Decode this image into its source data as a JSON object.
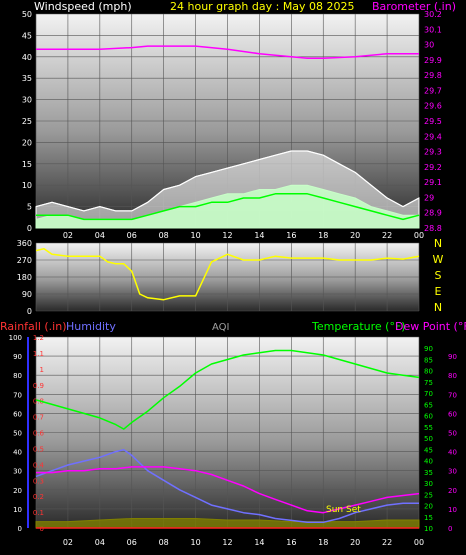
{
  "header": {
    "wind_label": "Windspeed (mph)",
    "title": "24 hour graph day : May 08 2025",
    "baro_label": "Barometer (.in)"
  },
  "dir_labels": [
    "N",
    "W",
    "S",
    "E",
    "N"
  ],
  "bottom_header": {
    "rain_label": "Rainfall (.in)",
    "humidity_label": "Humidity",
    "aqi_label": "AQI",
    "temp_label": "Temperature (°F)",
    "dew_label": "Dew Point (°F)"
  },
  "annotation": "Sun Set",
  "colors": {
    "wind_label": "#ffffff",
    "title": "#ffff00",
    "baro": "#ff00ff",
    "gust": "#ffffff",
    "avg_wind": "#c8ffc8",
    "wind_line": "#00ff00",
    "direction": "#ffff00",
    "rain": "#ff2222",
    "humidity": "#7070ff",
    "aqi": "#a0a0a0",
    "temperature": "#00ff00",
    "dew_point": "#ff00ff",
    "solar": "#808000",
    "axis_blue": "#3030ff"
  },
  "chart_data": [
    {
      "type": "line",
      "name": "wind_and_barometer",
      "x_ticks": [
        "02",
        "04",
        "06",
        "08",
        "10",
        "12",
        "14",
        "16",
        "18",
        "20",
        "22",
        "00"
      ],
      "y_left": {
        "label": "Windspeed (mph)",
        "ylim": [
          0,
          50
        ],
        "ticks": [
          "0",
          "5",
          "10",
          "15",
          "20",
          "25",
          "30",
          "35",
          "40",
          "45",
          "50"
        ]
      },
      "y_right": {
        "label": "Barometer (.in)",
        "ylim": [
          28.8,
          30.2
        ],
        "ticks": [
          "28.8",
          "28.9",
          "29",
          "29.1",
          "29.2",
          "29.3",
          "29.4",
          "29.5",
          "29.6",
          "29.7",
          "29.8",
          "29.9",
          "30",
          "30.1",
          "30.2"
        ]
      },
      "grid": true,
      "series": [
        {
          "name": "Barometer (.in)",
          "axis": "right",
          "x": [
            0,
            2,
            4,
            6,
            7,
            8,
            10,
            12,
            14,
            16,
            17,
            18,
            20,
            22,
            24
          ],
          "y": [
            29.97,
            29.97,
            29.97,
            29.98,
            29.99,
            29.99,
            29.99,
            29.97,
            29.94,
            29.92,
            29.91,
            29.91,
            29.92,
            29.94,
            29.94
          ]
        },
        {
          "axis": "left",
          "role": "gust",
          "x": [
            0,
            1,
            2,
            3,
            4,
            5,
            6,
            7,
            8,
            9,
            10,
            11,
            12,
            13,
            14,
            15,
            16,
            17,
            18,
            19,
            20,
            21,
            22,
            23,
            24
          ],
          "y": [
            5,
            6,
            5,
            4,
            5,
            4,
            4,
            6,
            9,
            10,
            12,
            13,
            14,
            15,
            16,
            17,
            18,
            18,
            17,
            15,
            13,
            10,
            7,
            5,
            7
          ]
        },
        {
          "axis": "left",
          "role": "average",
          "x": [
            0,
            1,
            2,
            3,
            4,
            5,
            6,
            7,
            8,
            9,
            10,
            11,
            12,
            13,
            14,
            15,
            16,
            17,
            18,
            19,
            20,
            21,
            22,
            23,
            24
          ],
          "y": [
            2,
            3,
            3,
            2,
            2,
            2,
            2,
            3,
            4,
            5,
            6,
            7,
            8,
            8,
            9,
            9,
            10,
            10,
            9,
            8,
            7,
            5,
            4,
            3,
            3
          ]
        },
        {
          "axis": "left",
          "role": "wind",
          "x": [
            0,
            1,
            2,
            3,
            4,
            5,
            6,
            7,
            8,
            9,
            10,
            11,
            12,
            13,
            14,
            15,
            16,
            17,
            18,
            19,
            20,
            21,
            22,
            23,
            24
          ],
          "y": [
            3,
            3,
            3,
            2,
            2,
            2,
            2,
            3,
            4,
            5,
            5,
            6,
            6,
            7,
            7,
            8,
            8,
            8,
            7,
            6,
            5,
            4,
            3,
            2,
            3
          ]
        }
      ]
    },
    {
      "type": "line",
      "name": "wind_direction",
      "y_ticks": [
        "0",
        "90",
        "180",
        "270",
        "360"
      ],
      "ylim": [
        0,
        360
      ],
      "grid": true,
      "series": [
        {
          "axis": "left",
          "x": [
            0,
            0.5,
            1,
            2,
            3,
            4,
            4.5,
            5,
            5.5,
            6,
            6.5,
            7,
            8,
            9,
            10,
            11,
            12,
            13,
            14,
            15,
            16,
            17,
            18,
            19,
            20,
            21,
            22,
            23,
            24
          ],
          "y": [
            320,
            330,
            300,
            290,
            290,
            290,
            260,
            250,
            250,
            210,
            90,
            70,
            60,
            80,
            80,
            260,
            300,
            270,
            270,
            290,
            280,
            280,
            280,
            270,
            270,
            270,
            280,
            275,
            290
          ]
        }
      ]
    },
    {
      "type": "line",
      "name": "temperature_humidity_rain",
      "x_ticks": [
        "02",
        "04",
        "06",
        "08",
        "10",
        "12",
        "14",
        "16",
        "18",
        "20",
        "22",
        "00"
      ],
      "y_left": {
        "label": "Rainfall (.in)",
        "ylim": [
          0,
          1.2
        ],
        "ticks": [
          "0",
          "0.1",
          "0.2",
          "0.3",
          "0.4",
          "0.5",
          "0.6",
          "0.7",
          "0.8",
          "0.9",
          "1",
          "1.1",
          "1.2"
        ]
      },
      "y_humidity": {
        "label": "Humidity",
        "ylim": [
          0,
          100
        ],
        "ticks": [
          "0",
          "10",
          "20",
          "30",
          "40",
          "50",
          "60",
          "70",
          "80",
          "90",
          "100"
        ]
      },
      "y_right_1": {
        "label": "Temperature (°F)",
        "ylim": [
          10,
          95
        ],
        "ticks": [
          "10",
          "15",
          "20",
          "25",
          "30",
          "35",
          "40",
          "45",
          "50",
          "55",
          "60",
          "65",
          "70",
          "75",
          "80",
          "85",
          "90"
        ]
      },
      "y_right_2": {
        "label": "Dew Point (°F)",
        "ylim": [
          0,
          100
        ],
        "ticks": [
          "0",
          "10",
          "20",
          "30",
          "40",
          "50",
          "60",
          "70",
          "80",
          "90"
        ]
      },
      "grid": true,
      "series": [
        {
          "name": "Temperature (°F)",
          "axis": "right_1",
          "x": [
            0,
            1,
            2,
            3,
            4,
            5,
            5.5,
            6,
            7,
            8,
            9,
            10,
            11,
            12,
            13,
            14,
            15,
            16,
            17,
            18,
            19,
            20,
            21,
            22,
            23,
            24
          ],
          "y": [
            67,
            65,
            63,
            61,
            59,
            56,
            54,
            57,
            62,
            68,
            73,
            79,
            83,
            85,
            87,
            88,
            89,
            89,
            88,
            87,
            85,
            83,
            81,
            79,
            78,
            77
          ]
        },
        {
          "name": "Humidity",
          "axis": "humidity",
          "x": [
            0,
            1,
            2,
            3,
            4,
            5,
            5.5,
            6,
            7,
            8,
            9,
            10,
            11,
            12,
            13,
            14,
            15,
            16,
            17,
            18,
            19,
            20,
            21,
            22,
            23,
            24
          ],
          "y": [
            27,
            30,
            33,
            35,
            37,
            40,
            41,
            38,
            30,
            25,
            20,
            16,
            12,
            10,
            8,
            7,
            5,
            4,
            3,
            3,
            5,
            8,
            10,
            12,
            13,
            13
          ]
        },
        {
          "name": "Dew Point (°F)",
          "axis": "right_2",
          "x": [
            0,
            1,
            2,
            3,
            4,
            5,
            6,
            7,
            8,
            9,
            10,
            11,
            12,
            13,
            14,
            15,
            16,
            17,
            18,
            19,
            20,
            21,
            22,
            23,
            24
          ],
          "y": [
            29,
            29,
            30,
            30,
            31,
            31,
            32,
            32,
            32,
            31,
            30,
            28,
            25,
            22,
            18,
            15,
            12,
            9,
            8,
            10,
            12,
            14,
            16,
            17,
            18
          ]
        },
        {
          "name": "AQI",
          "axis": "left",
          "role": "aqi",
          "x": [
            0,
            2,
            4,
            6,
            8,
            10,
            12,
            14,
            16,
            18,
            20,
            22,
            24
          ],
          "y": [
            0.04,
            0.04,
            0.05,
            0.06,
            0.06,
            0.06,
            0.05,
            0.05,
            0.04,
            0.04,
            0.04,
            0.05,
            0.05
          ]
        },
        {
          "name": "Rainfall (.in)",
          "axis": "left",
          "x": [
            0,
            24
          ],
          "y": [
            0,
            0
          ]
        }
      ]
    }
  ]
}
